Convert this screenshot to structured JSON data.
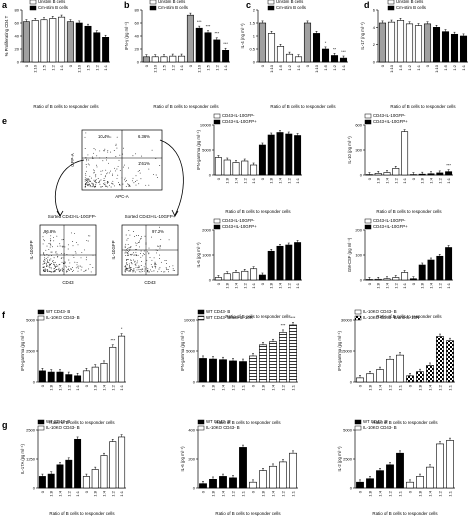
{
  "figure_panels": [
    {
      "letter": "a",
      "ylabel": "% Proliferating CD4 T",
      "xlabel": "Ratio of B cells to responder cells",
      "legend": [
        "Unstim B cells",
        "Cm-stim B cells"
      ]
    },
    {
      "letter": "b",
      "ylabel": "IFN-γ (pg ml⁻¹)",
      "xlabel": "Ratio of B cells to responder cells",
      "legend": [
        "Unstim B cells",
        "Cm-stim B cells"
      ]
    },
    {
      "letter": "c",
      "ylabel": "IL-4 (ng ml⁻¹)",
      "xlabel": "Ratio of B cells to responder cells",
      "legend": [
        "Unstim B cells",
        "Cm-stim B cells"
      ]
    },
    {
      "letter": "d",
      "ylabel": "IL-17 (ng ml⁻¹)",
      "xlabel": "Ratio of B cells to responder cells",
      "legend": [
        "Unstim B cells",
        "Cm-stim B cells"
      ]
    }
  ],
  "panel_e": {
    "letter": "e",
    "flow": {
      "main_gates": [
        "10.4%",
        "6.36%",
        "1.61%"
      ],
      "main_xlabel": "APC-A",
      "main_ylabel": "GFP-A",
      "sorted_neg_title": "Sorted CD43-IL-10GFP-",
      "sorted_pos_title": "Sorted CD43+IL-10GFP+",
      "sorted_neg_gate": "96.8%",
      "sorted_pos_gate": "97.2%",
      "sorted_xlabel": "CD43",
      "sorted_ylabel": "IL-10GFP"
    }
  },
  "chart_data": [
    {
      "id": "a",
      "type": "bar",
      "categories": [
        "0",
        "1:10",
        "1:5",
        "1:2",
        "1:1"
      ],
      "ylim": [
        0,
        80
      ],
      "series": [
        {
          "name": "Unstim B cells",
          "values": [
            62,
            64,
            65,
            67,
            69
          ]
        },
        {
          "name": "Cm-stim B cells",
          "values": [
            62,
            60,
            55,
            45,
            38
          ]
        }
      ]
    },
    {
      "id": "b",
      "type": "bar",
      "categories": [
        "0",
        "1:10",
        "1:5",
        "1:2",
        "1:1"
      ],
      "ylim": [
        0,
        80
      ],
      "series": [
        {
          "name": "Unstim B cells",
          "values": [
            8,
            8,
            8,
            9,
            9
          ]
        },
        {
          "name": "Cm-stim B cells",
          "values": [
            72,
            52,
            45,
            34,
            18
          ]
        }
      ]
    },
    {
      "id": "c",
      "type": "bar",
      "categories": [
        "0",
        "1:10",
        "1:5",
        "1:2",
        "1:1"
      ],
      "ylim": [
        0,
        2
      ],
      "series": [
        {
          "name": "Unstim B cells",
          "values": [
            1.5,
            1.1,
            0.6,
            0.3,
            0.2
          ]
        },
        {
          "name": "Cm-stim B cells",
          "values": [
            1.5,
            1.1,
            0.5,
            0.25,
            0.15
          ]
        }
      ]
    },
    {
      "id": "d",
      "type": "bar",
      "categories": [
        "0",
        "1:10",
        "1:5",
        "1:2",
        "1:1"
      ],
      "ylim": [
        0,
        6
      ],
      "series": [
        {
          "name": "Unstim B cells",
          "values": [
            4.5,
            4.6,
            4.8,
            4.4,
            4.2
          ]
        },
        {
          "name": "Cm-stim B cells",
          "values": [
            4.4,
            4.0,
            3.5,
            3.2,
            3.0
          ]
        }
      ]
    },
    {
      "id": "e1",
      "type": "bar",
      "ylabel": "IFN-gamma (pg ml⁻¹)",
      "xlabel": "Ratio of B cells to responder cells",
      "categories": [
        "0",
        "1:8",
        "1:4",
        "1:2",
        "1:1"
      ],
      "ylim": [
        0,
        10000
      ],
      "series": [
        {
          "name": "CD43-IL-10GFP-",
          "values": [
            3500,
            3000,
            2500,
            2800,
            2000
          ]
        },
        {
          "name": "CD43+IL-10GFP+",
          "values": [
            6000,
            8000,
            8500,
            8200,
            7900
          ]
        }
      ]
    },
    {
      "id": "e2",
      "type": "bar",
      "ylabel": "IL-10 (pg ml⁻¹)",
      "xlabel": "Ratio of B cells to responder cells",
      "categories": [
        "0",
        "1:8",
        "1:4",
        "1:2",
        "1:1"
      ],
      "ylim": [
        0,
        600
      ],
      "series": [
        {
          "name": "CD43-IL-10GFP-",
          "values": [
            5,
            20,
            30,
            80,
            520
          ]
        },
        {
          "name": "CD43+IL-10GFP+",
          "values": [
            5,
            10,
            15,
            25,
            40
          ]
        }
      ]
    },
    {
      "id": "e3",
      "type": "bar",
      "ylabel": "IL-6 (pg ml⁻¹)",
      "xlabel": "Ratio of B cells to responder cells",
      "categories": [
        "0",
        "1:8",
        "1:4",
        "1:2",
        "1:1"
      ],
      "ylim": [
        0,
        2000
      ],
      "series": [
        {
          "name": "CD43-IL-10GFP-",
          "values": [
            100,
            250,
            300,
            350,
            450
          ]
        },
        {
          "name": "CD43+IL-10GFP+",
          "values": [
            200,
            1150,
            1350,
            1400,
            1500
          ]
        }
      ]
    },
    {
      "id": "e4",
      "type": "bar",
      "ylabel": "GM-CSF (pg ml⁻¹)",
      "xlabel": "Ratio of B cells to responder cells",
      "categories": [
        "0",
        "1:8",
        "1:4",
        "1:2",
        "1:1"
      ],
      "ylim": [
        0,
        200
      ],
      "series": [
        {
          "name": "CD43-IL-10GFP-",
          "values": [
            2,
            3,
            5,
            10,
            30
          ]
        },
        {
          "name": "CD43+IL-10GFP+",
          "values": [
            5,
            60,
            80,
            95,
            130
          ]
        }
      ]
    },
    {
      "id": "f1",
      "type": "bar",
      "ylabel": "IFN-gamma (pg ml⁻¹)",
      "xlabel": "Ratio of B cells to responder cells",
      "categories": [
        "0",
        "1:8",
        "1:4",
        "1:2",
        "1:1"
      ],
      "ylim": [
        0,
        5000
      ],
      "series": [
        {
          "name": "WT CD43- B",
          "values": [
            900,
            800,
            800,
            600,
            500
          ]
        },
        {
          "name": "IL-10KO CD43- B",
          "values": [
            900,
            1200,
            1500,
            2800,
            3700
          ]
        }
      ]
    },
    {
      "id": "f2",
      "type": "bar",
      "ylabel": "IFN-gamma (pg ml⁻¹)",
      "xlabel": "Ratio of B cells to responder cells",
      "categories": [
        "0",
        "1:8",
        "1:4",
        "1:2",
        "1:1"
      ],
      "ylim": [
        0,
        10000
      ],
      "series": [
        {
          "name": "WT CD43- B",
          "values": [
            3800,
            3700,
            3600,
            3400,
            3300
          ]
        },
        {
          "name": "WT CD43- B/anti-IL-10R",
          "values": [
            4200,
            6000,
            6500,
            8000,
            9200
          ]
        }
      ]
    },
    {
      "id": "f3",
      "type": "bar",
      "ylabel": "IFN-gamma (pg ml⁻¹)",
      "xlabel": "Ratio of B cells to responder cells",
      "categories": [
        "0",
        "1:8",
        "1:4",
        "1:2",
        "1:1"
      ],
      "ylim": [
        0,
        30000
      ],
      "series": [
        {
          "name": "IL-10KO CD43- B",
          "values": [
            2000,
            4000,
            6000,
            11000,
            13000
          ]
        },
        {
          "name": "IL-10KO CD43- B/anti-IL-10R",
          "values": [
            3000,
            5000,
            8000,
            22000,
            20000
          ]
        }
      ]
    },
    {
      "id": "g1",
      "type": "bar",
      "ylabel": "IL-17A (pg ml⁻¹)",
      "xlabel": "Ratio of B cells to responder cells",
      "categories": [
        "0",
        "1:8",
        "1:4",
        "1:2",
        "1:1"
      ],
      "ylim": [
        0,
        2500
      ],
      "series": [
        {
          "name": "WT CD43- B",
          "values": [
            500,
            600,
            1000,
            1200,
            2100
          ]
        },
        {
          "name": "IL-10KO CD43- B",
          "values": [
            500,
            800,
            1400,
            2000,
            2200
          ]
        }
      ]
    },
    {
      "id": "g2",
      "type": "bar",
      "ylabel": "IL-6 (pg ml⁻¹)",
      "xlabel": "Ratio of B cells to responder cells",
      "categories": [
        "0",
        "1:8",
        "1:4",
        "1:2",
        "1:1"
      ],
      "ylim": [
        0,
        400
      ],
      "series": [
        {
          "name": "WT CD43- B",
          "values": [
            30,
            60,
            80,
            70,
            280
          ]
        },
        {
          "name": "IL-10KO CD43- B",
          "values": [
            40,
            120,
            150,
            180,
            240
          ]
        }
      ]
    },
    {
      "id": "g3",
      "type": "bar",
      "ylabel": "IL-2 (pg ml⁻¹)",
      "xlabel": "Ratio of B cells to responder cells",
      "categories": [
        "0",
        "1:8",
        "1:4",
        "1:2",
        "1:1"
      ],
      "ylim": [
        0,
        5000
      ],
      "series": [
        {
          "name": "WT CD43- B",
          "values": [
            500,
            800,
            1500,
            2000,
            3000
          ]
        },
        {
          "name": "IL-10KO CD43- B",
          "values": [
            500,
            1000,
            1800,
            3800,
            4100
          ]
        }
      ]
    }
  ],
  "sig_marks": {
    "b": [
      "***",
      "***",
      "***",
      "***"
    ],
    "c": [
      "*",
      "**",
      "***"
    ],
    "e2": [
      "***"
    ],
    "f1": [
      "***",
      "*"
    ],
    "f2": [
      "***",
      "***"
    ]
  }
}
